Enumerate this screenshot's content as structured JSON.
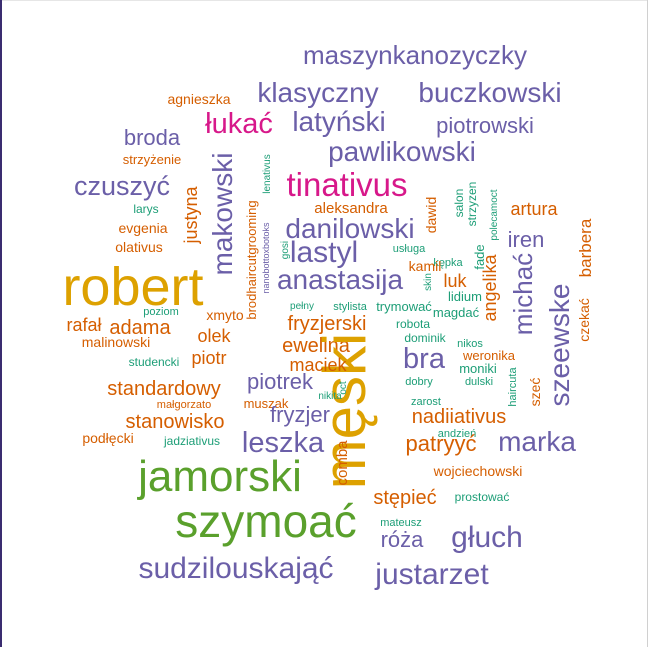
{
  "colors": {
    "purple": "#6B5FA8",
    "orange": "#D55E00",
    "green": "#5AA02C",
    "gold": "#DDA100",
    "magenta": "#D7188A",
    "teal": "#1D9E77"
  },
  "words": [
    {
      "text": "maszynkanozyczky",
      "color": "purple",
      "weight": "large"
    },
    {
      "text": "klasyczny",
      "color": "purple",
      "weight": "large"
    },
    {
      "text": "buczkowski",
      "color": "purple",
      "weight": "large"
    },
    {
      "text": "agnieszka",
      "color": "orange",
      "weight": "small"
    },
    {
      "text": "łukać",
      "color": "magenta",
      "weight": "large"
    },
    {
      "text": "latyński",
      "color": "purple",
      "weight": "large"
    },
    {
      "text": "piotrowski",
      "color": "purple",
      "weight": "medium"
    },
    {
      "text": "broda",
      "color": "purple",
      "weight": "medium"
    },
    {
      "text": "pawlikowski",
      "color": "purple",
      "weight": "large"
    },
    {
      "text": "strzyżenie",
      "color": "orange",
      "weight": "small"
    },
    {
      "text": "makowski",
      "color": "purple",
      "weight": "large"
    },
    {
      "text": "lenativus",
      "color": "teal",
      "weight": "tiny"
    },
    {
      "text": "tinativus",
      "color": "magenta",
      "weight": "large"
    },
    {
      "text": "czuszyć",
      "color": "purple",
      "weight": "large"
    },
    {
      "text": "justyna",
      "color": "orange",
      "weight": "medium"
    },
    {
      "text": "larys",
      "color": "teal",
      "weight": "small"
    },
    {
      "text": "brodhaircutgrooming",
      "color": "orange",
      "weight": "small"
    },
    {
      "text": "nanobottoxbotoks",
      "color": "purple",
      "weight": "tiny"
    },
    {
      "text": "aleksandra",
      "color": "orange",
      "weight": "small"
    },
    {
      "text": "dawid",
      "color": "orange",
      "weight": "small"
    },
    {
      "text": "salon",
      "color": "teal",
      "weight": "small"
    },
    {
      "text": "strzyzen",
      "color": "teal",
      "weight": "small"
    },
    {
      "text": "polecamoct",
      "color": "teal",
      "weight": "tiny"
    },
    {
      "text": "artura",
      "color": "orange",
      "weight": "medium"
    },
    {
      "text": "evgenia",
      "color": "orange",
      "weight": "small"
    },
    {
      "text": "danilowski",
      "color": "purple",
      "weight": "large"
    },
    {
      "text": "barbera",
      "color": "orange",
      "weight": "medium"
    },
    {
      "text": "olativus",
      "color": "orange",
      "weight": "small"
    },
    {
      "text": "lastyl",
      "color": "purple",
      "weight": "large"
    },
    {
      "text": "usługa",
      "color": "teal",
      "weight": "tiny"
    },
    {
      "text": "iren",
      "color": "purple",
      "weight": "medium"
    },
    {
      "text": "gosi",
      "color": "teal",
      "weight": "tiny"
    },
    {
      "text": "kępka",
      "color": "teal",
      "weight": "tiny"
    },
    {
      "text": "fade",
      "color": "teal",
      "weight": "small"
    },
    {
      "text": "robert",
      "color": "gold",
      "weight": "huge"
    },
    {
      "text": "anastasija",
      "color": "purple",
      "weight": "large"
    },
    {
      "text": "kamil",
      "color": "orange",
      "weight": "small"
    },
    {
      "text": "skin",
      "color": "teal",
      "weight": "tiny"
    },
    {
      "text": "luk",
      "color": "orange",
      "weight": "medium"
    },
    {
      "text": "angelika",
      "color": "orange",
      "weight": "medium"
    },
    {
      "text": "michać",
      "color": "purple",
      "weight": "large"
    },
    {
      "text": "szeewske",
      "color": "purple",
      "weight": "large"
    },
    {
      "text": "lidium",
      "color": "teal",
      "weight": "small"
    },
    {
      "text": "poziom",
      "color": "teal",
      "weight": "tiny"
    },
    {
      "text": "xmyto",
      "color": "orange",
      "weight": "small"
    },
    {
      "text": "pełny",
      "color": "teal",
      "weight": "tiny"
    },
    {
      "text": "stylista",
      "color": "teal",
      "weight": "tiny"
    },
    {
      "text": "trymować",
      "color": "teal",
      "weight": "small"
    },
    {
      "text": "magdać",
      "color": "teal",
      "weight": "small"
    },
    {
      "text": "czekać",
      "color": "orange",
      "weight": "small"
    },
    {
      "text": "rafał",
      "color": "orange",
      "weight": "medium"
    },
    {
      "text": "adama",
      "color": "orange",
      "weight": "medium"
    },
    {
      "text": "fryzjerski",
      "color": "orange",
      "weight": "medium"
    },
    {
      "text": "robota",
      "color": "teal",
      "weight": "small"
    },
    {
      "text": "olek",
      "color": "orange",
      "weight": "medium"
    },
    {
      "text": "malinowski",
      "color": "orange",
      "weight": "small"
    },
    {
      "text": "ewelina",
      "color": "orange",
      "weight": "medium"
    },
    {
      "text": "dominik",
      "color": "teal",
      "weight": "small"
    },
    {
      "text": "nikos",
      "color": "teal",
      "weight": "tiny"
    },
    {
      "text": "męski",
      "color": "gold",
      "weight": "huge"
    },
    {
      "text": "bra",
      "color": "purple",
      "weight": "large"
    },
    {
      "text": "studencki",
      "color": "teal",
      "weight": "small"
    },
    {
      "text": "piotr",
      "color": "orange",
      "weight": "medium"
    },
    {
      "text": "maciek",
      "color": "orange",
      "weight": "medium"
    },
    {
      "text": "weronika",
      "color": "orange",
      "weight": "small"
    },
    {
      "text": "moniki",
      "color": "teal",
      "weight": "small"
    },
    {
      "text": "standardowy",
      "color": "orange",
      "weight": "medium"
    },
    {
      "text": "piotrek",
      "color": "purple",
      "weight": "medium"
    },
    {
      "text": "oct",
      "color": "teal",
      "weight": "tiny"
    },
    {
      "text": "dobry",
      "color": "teal",
      "weight": "tiny"
    },
    {
      "text": "dulski",
      "color": "teal",
      "weight": "tiny"
    },
    {
      "text": "szeć",
      "color": "orange",
      "weight": "small"
    },
    {
      "text": "haircuta",
      "color": "teal",
      "weight": "tiny"
    },
    {
      "text": "małgorzato",
      "color": "orange",
      "weight": "tiny"
    },
    {
      "text": "muszak",
      "color": "orange",
      "weight": "small"
    },
    {
      "text": "zarost",
      "color": "teal",
      "weight": "tiny"
    },
    {
      "text": "stanowisko",
      "color": "orange",
      "weight": "medium"
    },
    {
      "text": "fryzjer",
      "color": "purple",
      "weight": "medium"
    },
    {
      "text": "nadiiativus",
      "color": "orange",
      "weight": "medium"
    },
    {
      "text": "andzień",
      "color": "teal",
      "weight": "tiny"
    },
    {
      "text": "podłęcki",
      "color": "orange",
      "weight": "small"
    },
    {
      "text": "jadziativus",
      "color": "teal",
      "weight": "tiny"
    },
    {
      "text": "leszka",
      "color": "purple",
      "weight": "large"
    },
    {
      "text": "comba",
      "color": "orange",
      "weight": "small"
    },
    {
      "text": "patryyć",
      "color": "orange",
      "weight": "medium"
    },
    {
      "text": "marka",
      "color": "purple",
      "weight": "large"
    },
    {
      "text": "jamorski",
      "color": "green",
      "weight": "huge"
    },
    {
      "text": "wojciechowski",
      "color": "orange",
      "weight": "small"
    },
    {
      "text": "stępieć",
      "color": "orange",
      "weight": "medium"
    },
    {
      "text": "prostować",
      "color": "teal",
      "weight": "small"
    },
    {
      "text": "szymoać",
      "color": "green",
      "weight": "huge"
    },
    {
      "text": "mateusz",
      "color": "teal",
      "weight": "tiny"
    },
    {
      "text": "róża",
      "color": "purple",
      "weight": "medium"
    },
    {
      "text": "głuch",
      "color": "purple",
      "weight": "large"
    },
    {
      "text": "sudzilouskająć",
      "color": "purple",
      "weight": "large"
    },
    {
      "text": "justarzet",
      "color": "purple",
      "weight": "large"
    },
    {
      "text": "nikita",
      "color": "teal",
      "weight": "tiny"
    }
  ]
}
